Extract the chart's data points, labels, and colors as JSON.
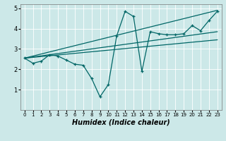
{
  "xlabel": "Humidex (Indice chaleur)",
  "bg_color": "#cce8e8",
  "line_color": "#006666",
  "xlim": [
    -0.5,
    23.5
  ],
  "ylim": [
    0,
    5.2
  ],
  "yticks": [
    1,
    2,
    3,
    4,
    5
  ],
  "xticks": [
    0,
    1,
    2,
    3,
    4,
    5,
    6,
    7,
    8,
    9,
    10,
    11,
    12,
    13,
    14,
    15,
    16,
    17,
    18,
    19,
    20,
    21,
    22,
    23
  ],
  "line1_x": [
    0,
    1,
    2,
    3,
    4,
    5,
    6,
    7,
    8,
    9,
    10,
    11,
    12,
    13,
    14,
    15,
    16,
    17,
    18,
    19,
    20,
    21,
    22,
    23
  ],
  "line1_y": [
    2.55,
    2.3,
    2.4,
    2.72,
    2.65,
    2.45,
    2.25,
    2.2,
    1.55,
    0.65,
    1.25,
    3.65,
    4.85,
    4.6,
    1.9,
    3.85,
    3.75,
    3.7,
    3.7,
    3.75,
    4.15,
    3.9,
    4.4,
    4.85
  ],
  "line2_x": [
    0,
    23
  ],
  "line2_y": [
    2.55,
    4.9
  ],
  "line3_x": [
    0,
    23
  ],
  "line3_y": [
    2.55,
    3.85
  ],
  "line4_x": [
    0,
    23
  ],
  "line4_y": [
    2.55,
    3.45
  ]
}
